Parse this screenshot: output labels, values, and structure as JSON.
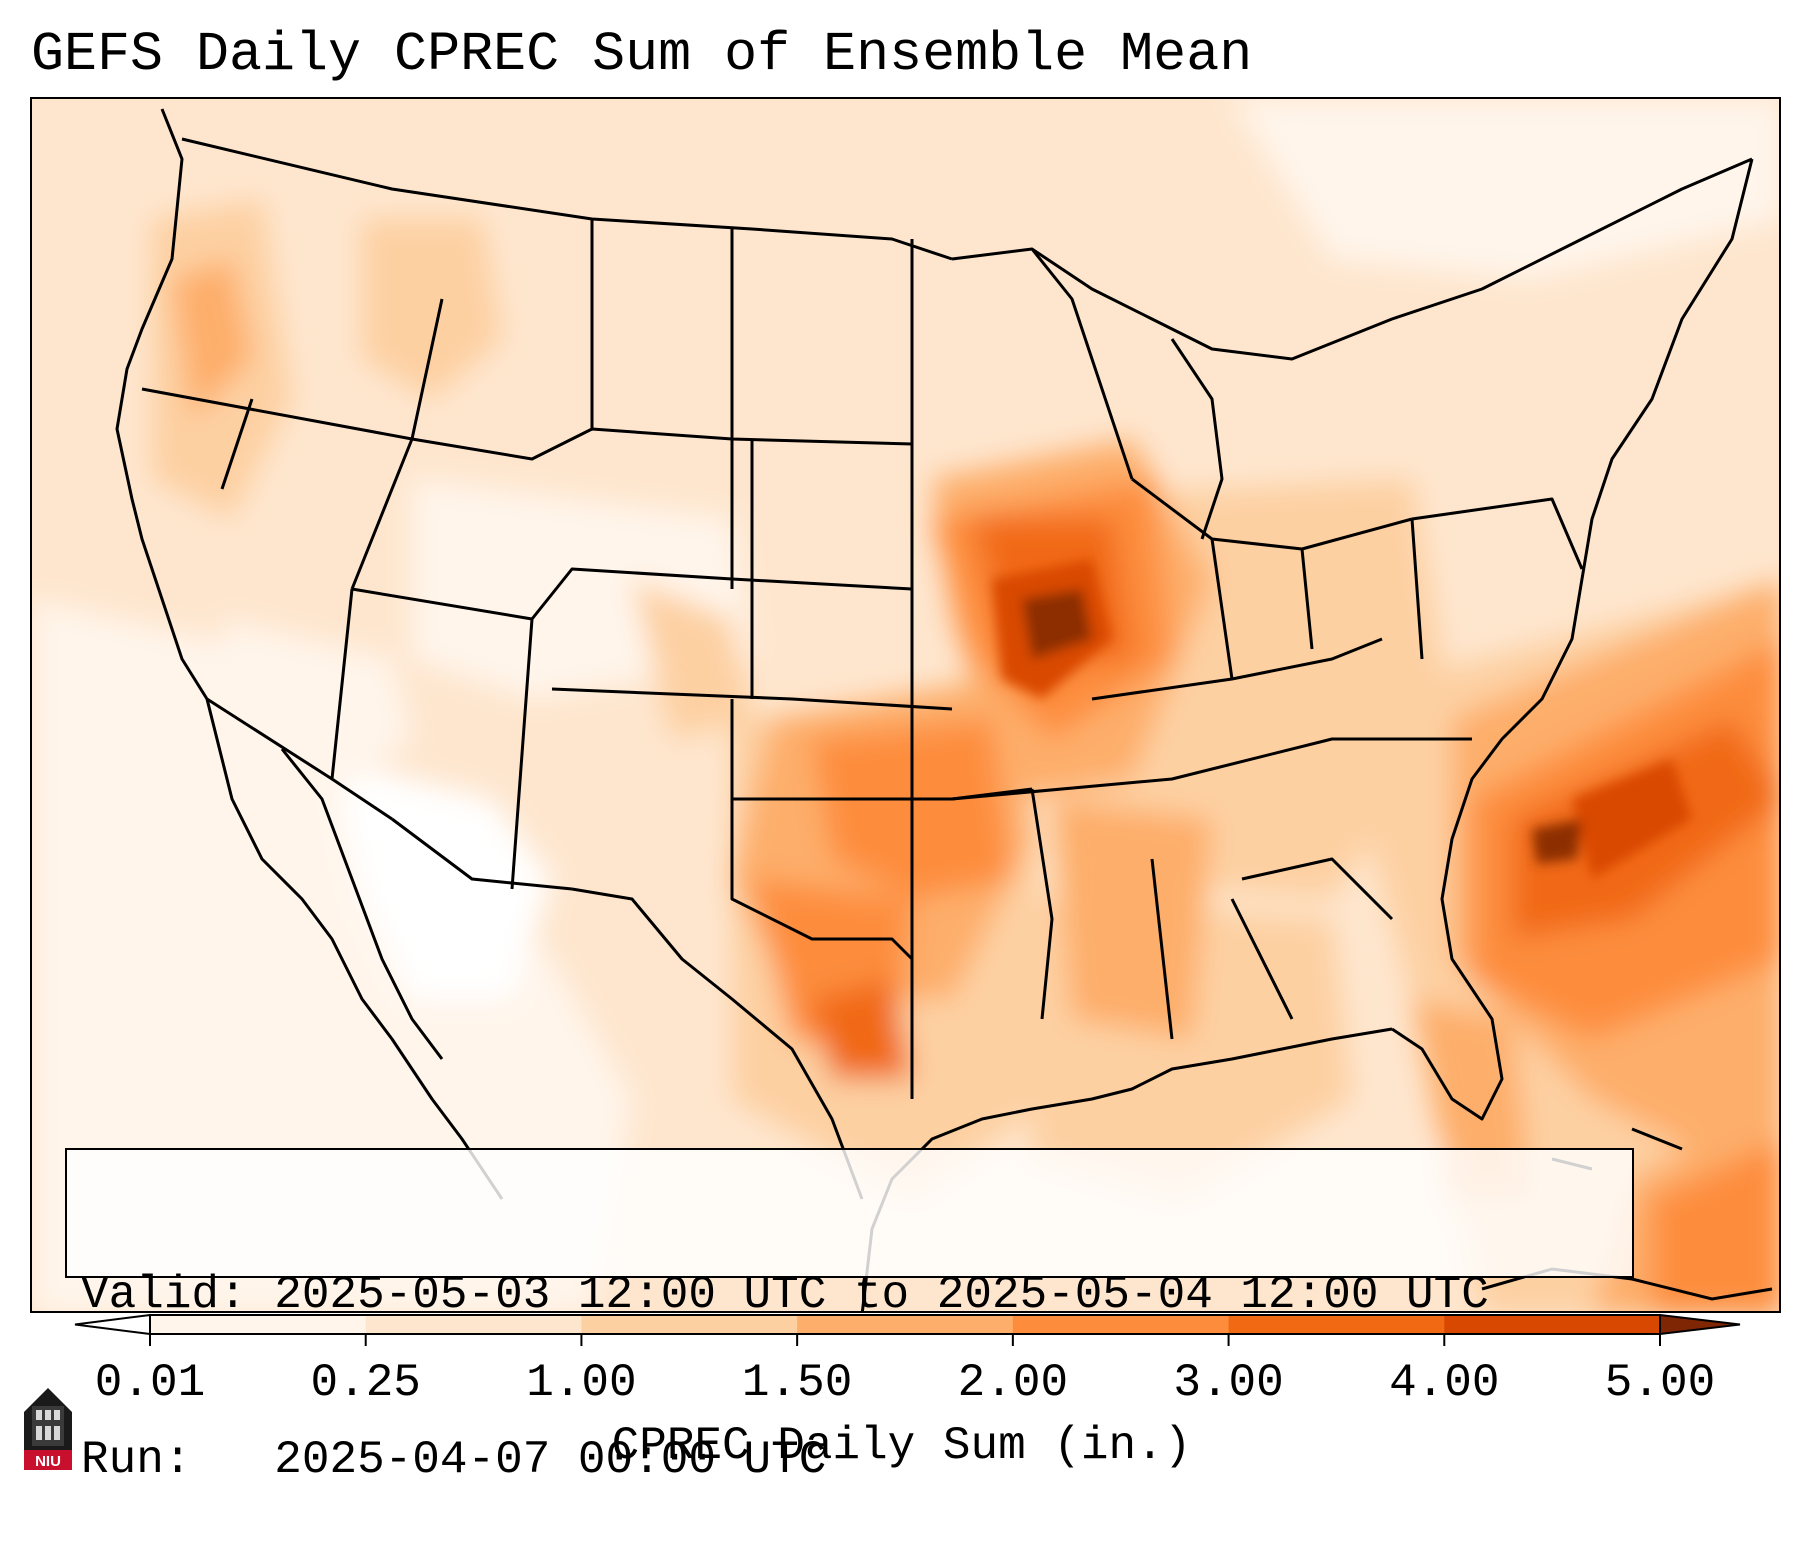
{
  "title": "GEFS Daily CPREC Sum of Ensemble Mean",
  "info": {
    "valid_label": "Valid:",
    "valid_value": "2025-05-03 12:00 UTC to 2025-05-04 12:00 UTC",
    "run_label": "Run:",
    "run_value": "2025-04-07 00:00 UTC"
  },
  "colorbar": {
    "label": "CPREC Daily Sum (in.)",
    "ticks": [
      "0.01",
      "0.25",
      "1.00",
      "1.50",
      "2.00",
      "3.00",
      "4.00",
      "5.00"
    ],
    "colors": [
      "#fff5eb",
      "#fee6ce",
      "#fdd0a2",
      "#fdae6b",
      "#fd8d3c",
      "#f16913",
      "#d94801",
      "#8c2d04"
    ],
    "under_color": "#ffffff",
    "over_color": "#7f2704"
  },
  "logo": {
    "text": "NIU",
    "icon": "university-tower-icon",
    "color": "#c8102e"
  }
}
